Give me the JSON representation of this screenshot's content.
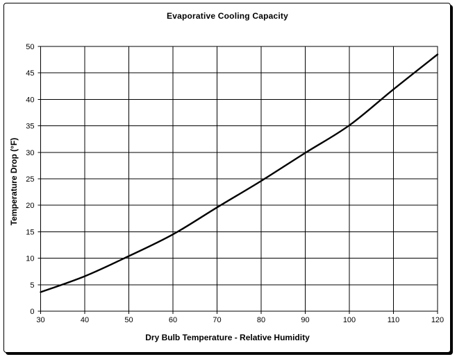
{
  "frame": {
    "background": "#ffffff",
    "border_color": "#000000"
  },
  "chart_data": {
    "type": "line",
    "title": "Evaporative Cooling Capacity",
    "xlabel": "Dry Bulb Temperature - Relative Humidity",
    "ylabel": "Temperature Drop (°F)",
    "x": [
      30,
      40,
      50,
      60,
      70,
      80,
      90,
      100,
      110,
      120
    ],
    "series": [
      {
        "name": "Temperature Drop",
        "values": [
          3.6,
          6.6,
          10.4,
          14.5,
          19.6,
          24.6,
          29.9,
          35.1,
          41.9,
          48.5
        ]
      }
    ],
    "xlim": [
      30,
      120
    ],
    "ylim": [
      0,
      50
    ],
    "x_ticks": [
      30,
      40,
      50,
      60,
      70,
      80,
      90,
      100,
      110,
      120
    ],
    "y_ticks": [
      0,
      5,
      10,
      15,
      20,
      25,
      30,
      35,
      40,
      45,
      50
    ],
    "grid": true,
    "legend": false,
    "line_color": "#000000",
    "grid_color": "#000000",
    "axis_color": "#000000",
    "line_width": 2.4
  }
}
